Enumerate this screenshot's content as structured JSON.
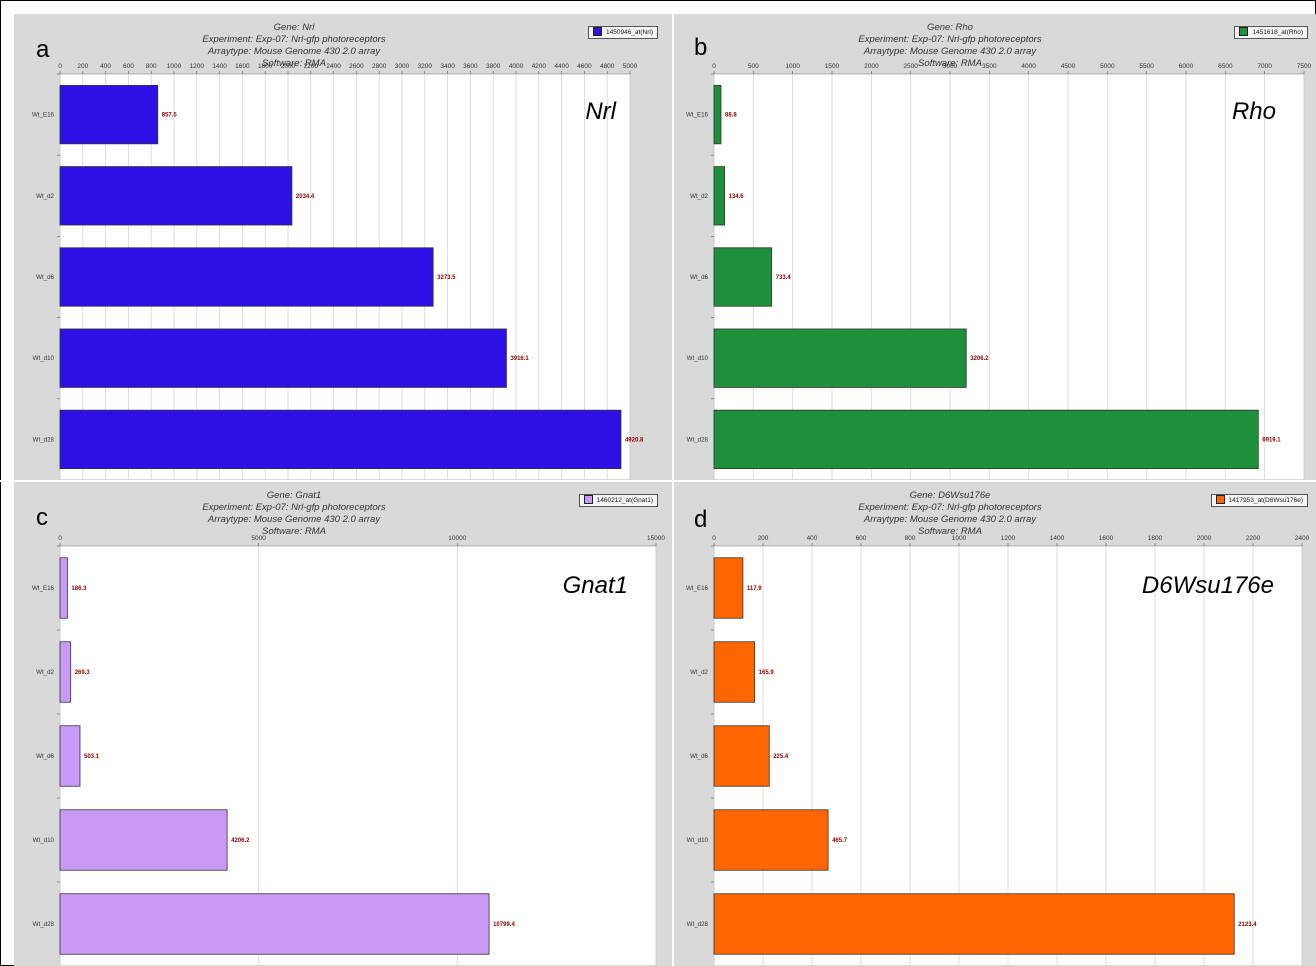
{
  "panels": [
    {
      "letter": "a",
      "gene_label": "Nrl",
      "header": {
        "gene": "Gene: Nrl",
        "experiment": "Experiment: Exp-07: Nrl-gfp photoreceptors",
        "arraytype": "Arraytype: Mouse Genome 430 2.0 array",
        "software": "Software: RMA"
      },
      "legend": "1450946_at(Nrl)",
      "color": "#2d10e6"
    },
    {
      "letter": "b",
      "gene_label": "Rho",
      "header": {
        "gene": "Gene: Rho",
        "experiment": "Experiment: Exp-07: Nrl-gfp photoreceptors",
        "arraytype": "Arraytype: Mouse Genome 430 2.0 array",
        "software": "Software: RMA"
      },
      "legend": "1451618_at(Rho)",
      "color": "#1e8f3a"
    },
    {
      "letter": "c",
      "gene_label": "Gnat1",
      "header": {
        "gene": "Gene: Gnat1",
        "experiment": "Experiment: Exp-07: Nrl-gfp photoreceptors",
        "arraytype": "Arraytype: Mouse Genome 430 2.0 array",
        "software": "Software: RMA"
      },
      "legend": "1460212_at(Gnat1)",
      "color": "#c89af5"
    },
    {
      "letter": "d",
      "gene_label": "D6Wsu176e",
      "header": {
        "gene": "Gene: D6Wsu176e",
        "experiment": "Experiment: Exp-07: Nrl-gfp photoreceptors",
        "arraytype": "Arraytype: Mouse Genome 430 2.0 array",
        "software": "Software: RMA"
      },
      "legend": "1417953_at(D6Wsu176e)",
      "color": "#ff6600"
    }
  ],
  "chart_data": [
    {
      "type": "bar",
      "orientation": "horizontal",
      "categories": [
        "Wt_E16",
        "Wt_d2",
        "Wt_d6",
        "Wt_d10",
        "Wt_d28"
      ],
      "values": [
        857.5,
        2034.4,
        3273.5,
        3916.1,
        4920.8
      ],
      "value_labels": [
        "857.5",
        "2034.4",
        "3273.5",
        "3916.1",
        "4920.8"
      ],
      "xlim": [
        0,
        5000
      ],
      "ticks": [
        0,
        200,
        400,
        600,
        800,
        1000,
        1200,
        1400,
        1600,
        1800,
        2000,
        2200,
        2400,
        2600,
        2800,
        3000,
        3200,
        3400,
        3600,
        3800,
        4000,
        4200,
        4400,
        4600,
        4800,
        5000
      ],
      "tick_labels": [
        "0",
        "200",
        "400",
        "600",
        "800",
        "1000",
        "1200",
        "1400",
        "1600",
        "1800",
        "2000",
        "2200",
        "2400",
        "2600",
        "2800",
        "3000",
        "3200",
        "3400",
        "3600",
        "3800",
        "4000",
        "4200",
        "4400",
        "4600",
        "4800",
        "5000"
      ],
      "grid": true,
      "legend_position": "top-right"
    },
    {
      "type": "bar",
      "orientation": "horizontal",
      "categories": [
        "Wt_E16",
        "Wt_d2",
        "Wt_d6",
        "Wt_d10",
        "Wt_d28"
      ],
      "values": [
        88.8,
        134.6,
        733.4,
        3206.2,
        6919.1
      ],
      "value_labels": [
        "88.8",
        "134.6",
        "733.4",
        "3206.2",
        "6919.1"
      ],
      "xlim": [
        0,
        7500
      ],
      "ticks": [
        0,
        500,
        1000,
        1500,
        2000,
        2500,
        3000,
        3500,
        4000,
        4500,
        5000,
        5500,
        6000,
        6500,
        7000,
        7500
      ],
      "tick_labels": [
        "0",
        "500",
        "1000",
        "1500",
        "2000",
        "2500",
        "3000",
        "3500",
        "4000",
        "4500",
        "5000",
        "5500",
        "6000",
        "6500",
        "7000",
        "7500"
      ],
      "grid": true,
      "legend_position": "top-right"
    },
    {
      "type": "bar",
      "orientation": "horizontal",
      "categories": [
        "Wt_E16",
        "Wt_d2",
        "Wt_d6",
        "Wt_d10",
        "Wt_d28"
      ],
      "values": [
        186.3,
        269.3,
        503.1,
        4206.2,
        10799.4
      ],
      "value_labels": [
        "186.3",
        "269.3",
        "503.1",
        "4206.2",
        "10799.4"
      ],
      "xlim": [
        0,
        15000
      ],
      "ticks": [
        0,
        5000,
        10000,
        15000
      ],
      "tick_labels": [
        "0",
        "5000",
        "10000",
        "15000"
      ],
      "grid": true,
      "legend_position": "top-right"
    },
    {
      "type": "bar",
      "orientation": "horizontal",
      "categories": [
        "Wt_E16",
        "Wt_d2",
        "Wt_d6",
        "Wt_d10",
        "Wt_d28"
      ],
      "values": [
        117.9,
        165.9,
        225.4,
        465.7,
        2123.4
      ],
      "value_labels": [
        "117.9",
        "165.9",
        "225.4",
        "465.7",
        "2123.4"
      ],
      "xlim": [
        0,
        2400
      ],
      "ticks": [
        0,
        200,
        400,
        600,
        800,
        1000,
        1200,
        1400,
        1600,
        1800,
        2000,
        2200,
        2400
      ],
      "tick_labels": [
        "0",
        "200",
        "400",
        "600",
        "800",
        "1000",
        "1200",
        "1400",
        "1600",
        "1800",
        "2000",
        "2200",
        "2400"
      ],
      "grid": true,
      "legend_position": "top-right"
    }
  ]
}
